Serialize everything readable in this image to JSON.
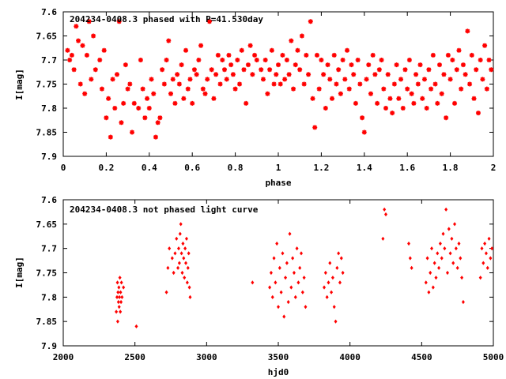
{
  "chart_data": [
    {
      "type": "scatter",
      "title": "204234-0408.3 phased with P=41.530day",
      "xlabel": "phase",
      "ylabel": "I[mag]",
      "xlim": [
        0,
        2
      ],
      "ylim": [
        7.6,
        7.9
      ],
      "y_inverted": true,
      "xticks": [
        "0",
        "0.2",
        "0.4",
        "0.6",
        "0.8",
        "1",
        "1.2",
        "1.4",
        "1.6",
        "1.8",
        "2"
      ],
      "yticks": [
        "7.6",
        "7.65",
        "7.7",
        "7.75",
        "7.8",
        "7.85",
        "7.9"
      ],
      "marker": "cross-star",
      "color": "#ff0000",
      "points": [
        [
          0.02,
          7.68
        ],
        [
          0.03,
          7.7
        ],
        [
          0.04,
          7.69
        ],
        [
          0.05,
          7.72
        ],
        [
          0.06,
          7.63
        ],
        [
          0.07,
          7.66
        ],
        [
          0.08,
          7.75
        ],
        [
          0.09,
          7.67
        ],
        [
          0.1,
          7.77
        ],
        [
          0.11,
          7.69
        ],
        [
          0.12,
          7.62
        ],
        [
          0.13,
          7.74
        ],
        [
          0.14,
          7.65
        ],
        [
          0.15,
          7.72
        ],
        [
          0.17,
          7.7
        ],
        [
          0.18,
          7.76
        ],
        [
          0.19,
          7.68
        ],
        [
          0.2,
          7.82
        ],
        [
          0.21,
          7.78
        ],
        [
          0.22,
          7.86
        ],
        [
          0.23,
          7.74
        ],
        [
          0.24,
          7.8
        ],
        [
          0.25,
          7.73
        ],
        [
          0.26,
          7.62
        ],
        [
          0.27,
          7.83
        ],
        [
          0.28,
          7.79
        ],
        [
          0.29,
          7.71
        ],
        [
          0.3,
          7.76
        ],
        [
          0.31,
          7.75
        ],
        [
          0.32,
          7.85
        ],
        [
          0.33,
          7.79
        ],
        [
          0.35,
          7.8
        ],
        [
          0.36,
          7.7
        ],
        [
          0.37,
          7.76
        ],
        [
          0.38,
          7.82
        ],
        [
          0.39,
          7.78
        ],
        [
          0.4,
          7.8
        ],
        [
          0.41,
          7.74
        ],
        [
          0.42,
          7.77
        ],
        [
          0.43,
          7.86
        ],
        [
          0.44,
          7.83
        ],
        [
          0.45,
          7.82
        ],
        [
          0.46,
          7.72
        ],
        [
          0.47,
          7.75
        ],
        [
          0.48,
          7.7
        ],
        [
          0.49,
          7.66
        ],
        [
          0.5,
          7.77
        ],
        [
          0.51,
          7.74
        ],
        [
          0.52,
          7.79
        ],
        [
          0.53,
          7.73
        ],
        [
          0.54,
          7.75
        ],
        [
          0.55,
          7.71
        ],
        [
          0.56,
          7.78
        ],
        [
          0.57,
          7.68
        ],
        [
          0.58,
          7.76
        ],
        [
          0.59,
          7.74
        ],
        [
          0.6,
          7.79
        ],
        [
          0.61,
          7.72
        ],
        [
          0.62,
          7.73
        ],
        [
          0.63,
          7.7
        ],
        [
          0.64,
          7.67
        ],
        [
          0.65,
          7.76
        ],
        [
          0.66,
          7.77
        ],
        [
          0.67,
          7.74
        ],
        [
          0.68,
          7.62
        ],
        [
          0.69,
          7.72
        ],
        [
          0.7,
          7.78
        ],
        [
          0.71,
          7.73
        ],
        [
          0.72,
          7.69
        ],
        [
          0.73,
          7.75
        ],
        [
          0.74,
          7.7
        ],
        [
          0.75,
          7.72
        ],
        [
          0.76,
          7.74
        ],
        [
          0.77,
          7.69
        ],
        [
          0.78,
          7.71
        ],
        [
          0.79,
          7.73
        ],
        [
          0.8,
          7.76
        ],
        [
          0.81,
          7.7
        ],
        [
          0.82,
          7.75
        ],
        [
          0.83,
          7.68
        ],
        [
          0.84,
          7.72
        ],
        [
          0.85,
          7.79
        ],
        [
          0.86,
          7.71
        ],
        [
          0.87,
          7.67
        ],
        [
          0.88,
          7.73
        ],
        [
          0.89,
          7.69
        ],
        [
          0.9,
          7.7
        ],
        [
          0.92,
          7.72
        ],
        [
          0.93,
          7.74
        ],
        [
          0.94,
          7.7
        ],
        [
          0.95,
          7.77
        ],
        [
          0.96,
          7.72
        ],
        [
          0.97,
          7.68
        ],
        [
          0.98,
          7.75
        ],
        [
          0.99,
          7.73
        ],
        [
          1.0,
          7.71
        ],
        [
          1.01,
          7.75
        ],
        [
          1.02,
          7.69
        ],
        [
          1.03,
          7.74
        ],
        [
          1.04,
          7.7
        ],
        [
          1.05,
          7.73
        ],
        [
          1.06,
          7.66
        ],
        [
          1.07,
          7.76
        ],
        [
          1.08,
          7.71
        ],
        [
          1.09,
          7.68
        ],
        [
          1.1,
          7.72
        ],
        [
          1.11,
          7.65
        ],
        [
          1.12,
          7.75
        ],
        [
          1.13,
          7.69
        ],
        [
          1.14,
          7.73
        ],
        [
          1.15,
          7.62
        ],
        [
          1.16,
          7.78
        ],
        [
          1.17,
          7.84
        ],
        [
          1.18,
          7.69
        ],
        [
          1.19,
          7.76
        ],
        [
          1.2,
          7.7
        ],
        [
          1.21,
          7.73
        ],
        [
          1.22,
          7.8
        ],
        [
          1.23,
          7.71
        ],
        [
          1.24,
          7.74
        ],
        [
          1.25,
          7.78
        ],
        [
          1.26,
          7.69
        ],
        [
          1.27,
          7.75
        ],
        [
          1.28,
          7.72
        ],
        [
          1.29,
          7.77
        ],
        [
          1.3,
          7.7
        ],
        [
          1.31,
          7.74
        ],
        [
          1.32,
          7.68
        ],
        [
          1.33,
          7.76
        ],
        [
          1.34,
          7.71
        ],
        [
          1.35,
          7.73
        ],
        [
          1.36,
          7.79
        ],
        [
          1.37,
          7.7
        ],
        [
          1.38,
          7.75
        ],
        [
          1.39,
          7.82
        ],
        [
          1.4,
          7.85
        ],
        [
          1.41,
          7.74
        ],
        [
          1.42,
          7.71
        ],
        [
          1.43,
          7.77
        ],
        [
          1.44,
          7.69
        ],
        [
          1.45,
          7.73
        ],
        [
          1.46,
          7.79
        ],
        [
          1.47,
          7.72
        ],
        [
          1.48,
          7.7
        ],
        [
          1.49,
          7.76
        ],
        [
          1.5,
          7.8
        ],
        [
          1.51,
          7.73
        ],
        [
          1.52,
          7.78
        ],
        [
          1.53,
          7.81
        ],
        [
          1.54,
          7.75
        ],
        [
          1.55,
          7.71
        ],
        [
          1.56,
          7.78
        ],
        [
          1.57,
          7.74
        ],
        [
          1.58,
          7.8
        ],
        [
          1.59,
          7.72
        ],
        [
          1.6,
          7.76
        ],
        [
          1.61,
          7.7
        ],
        [
          1.62,
          7.77
        ],
        [
          1.63,
          7.79
        ],
        [
          1.64,
          7.73
        ],
        [
          1.65,
          7.75
        ],
        [
          1.66,
          7.71
        ],
        [
          1.67,
          7.78
        ],
        [
          1.68,
          7.74
        ],
        [
          1.69,
          7.8
        ],
        [
          1.7,
          7.72
        ],
        [
          1.71,
          7.76
        ],
        [
          1.72,
          7.69
        ],
        [
          1.73,
          7.75
        ],
        [
          1.74,
          7.79
        ],
        [
          1.75,
          7.71
        ],
        [
          1.76,
          7.77
        ],
        [
          1.77,
          7.73
        ],
        [
          1.78,
          7.82
        ],
        [
          1.79,
          7.69
        ],
        [
          1.8,
          7.74
        ],
        [
          1.81,
          7.7
        ],
        [
          1.82,
          7.79
        ],
        [
          1.83,
          7.72
        ],
        [
          1.84,
          7.68
        ],
        [
          1.85,
          7.76
        ],
        [
          1.86,
          7.71
        ],
        [
          1.87,
          7.73
        ],
        [
          1.88,
          7.64
        ],
        [
          1.89,
          7.75
        ],
        [
          1.9,
          7.69
        ],
        [
          1.91,
          7.78
        ],
        [
          1.92,
          7.72
        ],
        [
          1.93,
          7.81
        ],
        [
          1.94,
          7.7
        ],
        [
          1.95,
          7.74
        ],
        [
          1.96,
          7.67
        ],
        [
          1.97,
          7.76
        ],
        [
          1.98,
          7.7
        ],
        [
          1.99,
          7.72
        ]
      ]
    },
    {
      "type": "scatter",
      "title": "204234-0408.3 not phased light curve",
      "xlabel": "hjd0",
      "ylabel": "I[mag]",
      "xlim": [
        2000,
        5000
      ],
      "ylim": [
        7.6,
        7.9
      ],
      "y_inverted": true,
      "xticks": [
        "2000",
        "2500",
        "3000",
        "3500",
        "4000",
        "4500",
        "5000"
      ],
      "yticks": [
        "7.6",
        "7.65",
        "7.7",
        "7.75",
        "7.8",
        "7.85",
        "7.9"
      ],
      "marker": "diamond",
      "color": "#ff0000",
      "points": [
        [
          2370,
          7.83
        ],
        [
          2375,
          7.8
        ],
        [
          2378,
          7.77
        ],
        [
          2380,
          7.85
        ],
        [
          2382,
          7.79
        ],
        [
          2385,
          7.81
        ],
        [
          2388,
          7.78
        ],
        [
          2390,
          7.82
        ],
        [
          2392,
          7.8
        ],
        [
          2395,
          7.76
        ],
        [
          2398,
          7.83
        ],
        [
          2400,
          7.79
        ],
        [
          2403,
          7.81
        ],
        [
          2406,
          7.77
        ],
        [
          2410,
          7.8
        ],
        [
          2420,
          7.78
        ],
        [
          2510,
          7.86
        ],
        [
          2720,
          7.79
        ],
        [
          2730,
          7.74
        ],
        [
          2740,
          7.7
        ],
        [
          2760,
          7.72
        ],
        [
          2770,
          7.75
        ],
        [
          2780,
          7.71
        ],
        [
          2790,
          7.68
        ],
        [
          2800,
          7.74
        ],
        [
          2805,
          7.7
        ],
        [
          2810,
          7.73
        ],
        [
          2815,
          7.67
        ],
        [
          2820,
          7.65
        ],
        [
          2825,
          7.71
        ],
        [
          2830,
          7.75
        ],
        [
          2835,
          7.69
        ],
        [
          2840,
          7.72
        ],
        [
          2845,
          7.76
        ],
        [
          2850,
          7.7
        ],
        [
          2855,
          7.73
        ],
        [
          2860,
          7.68
        ],
        [
          2865,
          7.77
        ],
        [
          2870,
          7.74
        ],
        [
          2875,
          7.71
        ],
        [
          2880,
          7.78
        ],
        [
          2885,
          7.8
        ],
        [
          3320,
          7.77
        ],
        [
          3440,
          7.78
        ],
        [
          3450,
          7.75
        ],
        [
          3460,
          7.8
        ],
        [
          3470,
          7.72
        ],
        [
          3480,
          7.77
        ],
        [
          3490,
          7.69
        ],
        [
          3500,
          7.82
        ],
        [
          3510,
          7.74
        ],
        [
          3520,
          7.79
        ],
        [
          3530,
          7.71
        ],
        [
          3540,
          7.84
        ],
        [
          3550,
          7.76
        ],
        [
          3560,
          7.73
        ],
        [
          3570,
          7.81
        ],
        [
          3580,
          7.67
        ],
        [
          3590,
          7.78
        ],
        [
          3600,
          7.72
        ],
        [
          3610,
          7.75
        ],
        [
          3620,
          7.8
        ],
        [
          3630,
          7.7
        ],
        [
          3640,
          7.77
        ],
        [
          3650,
          7.74
        ],
        [
          3660,
          7.71
        ],
        [
          3670,
          7.79
        ],
        [
          3680,
          7.76
        ],
        [
          3690,
          7.82
        ],
        [
          3820,
          7.78
        ],
        [
          3830,
          7.75
        ],
        [
          3840,
          7.8
        ],
        [
          3850,
          7.77
        ],
        [
          3860,
          7.73
        ],
        [
          3870,
          7.79
        ],
        [
          3880,
          7.76
        ],
        [
          3890,
          7.82
        ],
        [
          3900,
          7.85
        ],
        [
          3910,
          7.74
        ],
        [
          3920,
          7.71
        ],
        [
          3930,
          7.77
        ],
        [
          3940,
          7.72
        ],
        [
          3950,
          7.75
        ],
        [
          4230,
          7.68
        ],
        [
          4240,
          7.62
        ],
        [
          4250,
          7.63
        ],
        [
          4410,
          7.69
        ],
        [
          4420,
          7.72
        ],
        [
          4430,
          7.74
        ],
        [
          4530,
          7.77
        ],
        [
          4540,
          7.72
        ],
        [
          4550,
          7.79
        ],
        [
          4560,
          7.75
        ],
        [
          4570,
          7.7
        ],
        [
          4580,
          7.78
        ],
        [
          4590,
          7.73
        ],
        [
          4600,
          7.76
        ],
        [
          4610,
          7.71
        ],
        [
          4620,
          7.74
        ],
        [
          4630,
          7.69
        ],
        [
          4640,
          7.72
        ],
        [
          4650,
          7.67
        ],
        [
          4660,
          7.7
        ],
        [
          4670,
          7.62
        ],
        [
          4680,
          7.75
        ],
        [
          4690,
          7.66
        ],
        [
          4700,
          7.71
        ],
        [
          4710,
          7.68
        ],
        [
          4720,
          7.73
        ],
        [
          4730,
          7.65
        ],
        [
          4740,
          7.7
        ],
        [
          4750,
          7.74
        ],
        [
          4760,
          7.69
        ],
        [
          4770,
          7.72
        ],
        [
          4780,
          7.76
        ],
        [
          4790,
          7.81
        ],
        [
          4910,
          7.76
        ],
        [
          4920,
          7.7
        ],
        [
          4930,
          7.73
        ],
        [
          4940,
          7.69
        ],
        [
          4950,
          7.71
        ],
        [
          4960,
          7.74
        ],
        [
          4970,
          7.68
        ],
        [
          4980,
          7.72
        ],
        [
          4990,
          7.7
        ]
      ]
    }
  ]
}
